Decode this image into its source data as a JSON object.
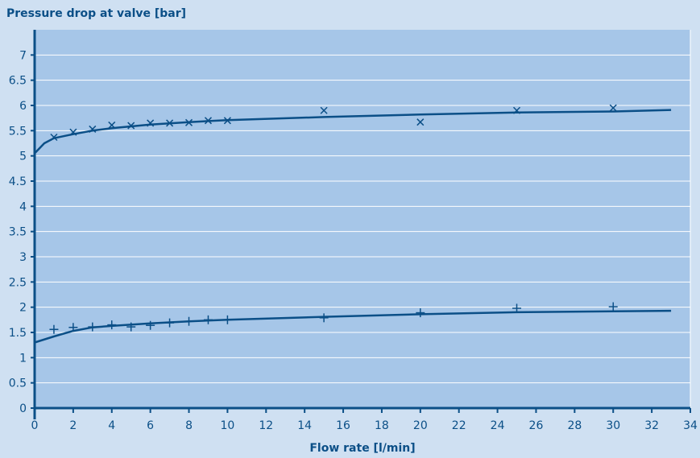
{
  "chart_data": {
    "type": "scatter",
    "title": "",
    "ylabel": "Pressure drop at valve [bar]",
    "xlabel": "Flow rate [l/min]",
    "xlim": [
      0,
      34
    ],
    "ylim": [
      0,
      7.5
    ],
    "xticks": [
      0,
      2,
      4,
      6,
      8,
      10,
      12,
      14,
      16,
      18,
      20,
      22,
      24,
      26,
      28,
      30,
      32,
      34
    ],
    "yticks": [
      0,
      0.5,
      1,
      1.5,
      2,
      2.5,
      3,
      3.5,
      4,
      4.5,
      5,
      5.5,
      6,
      6.5,
      7
    ],
    "grid": "horizontal",
    "series": [
      {
        "marker": "x",
        "points": [
          [
            1,
            5.37
          ],
          [
            2,
            5.47
          ],
          [
            3,
            5.53
          ],
          [
            4,
            5.61
          ],
          [
            5,
            5.6
          ],
          [
            6,
            5.65
          ],
          [
            7,
            5.65
          ],
          [
            8,
            5.66
          ],
          [
            9,
            5.7
          ],
          [
            10,
            5.7
          ],
          [
            15,
            5.9
          ],
          [
            20,
            5.67
          ],
          [
            25,
            5.9
          ],
          [
            30,
            5.95
          ]
        ],
        "fit": [
          [
            0,
            5.05
          ],
          [
            0.5,
            5.25
          ],
          [
            1,
            5.35
          ],
          [
            2,
            5.43
          ],
          [
            3,
            5.5
          ],
          [
            4,
            5.55
          ],
          [
            6,
            5.62
          ],
          [
            8,
            5.67
          ],
          [
            10,
            5.71
          ],
          [
            15,
            5.77
          ],
          [
            20,
            5.82
          ],
          [
            25,
            5.86
          ],
          [
            30,
            5.88
          ],
          [
            33,
            5.91
          ]
        ]
      },
      {
        "marker": "+",
        "points": [
          [
            1,
            1.56
          ],
          [
            2,
            1.6
          ],
          [
            3,
            1.61
          ],
          [
            4,
            1.65
          ],
          [
            5,
            1.61
          ],
          [
            6,
            1.64
          ],
          [
            7,
            1.69
          ],
          [
            8,
            1.72
          ],
          [
            9,
            1.75
          ],
          [
            10,
            1.75
          ],
          [
            15,
            1.79
          ],
          [
            20,
            1.89
          ],
          [
            25,
            1.98
          ],
          [
            30,
            2.01
          ]
        ],
        "fit": [
          [
            0,
            1.3
          ],
          [
            1,
            1.42
          ],
          [
            2,
            1.53
          ],
          [
            3,
            1.6
          ],
          [
            4,
            1.63
          ],
          [
            6,
            1.68
          ],
          [
            8,
            1.72
          ],
          [
            10,
            1.75
          ],
          [
            15,
            1.81
          ],
          [
            20,
            1.86
          ],
          [
            25,
            1.9
          ],
          [
            30,
            1.92
          ],
          [
            33,
            1.93
          ]
        ]
      }
    ],
    "colors": {
      "background": "#cfe0f2",
      "plot": "#a6c6e8",
      "line": "#0b4f87",
      "grid": "#ffffff"
    }
  }
}
